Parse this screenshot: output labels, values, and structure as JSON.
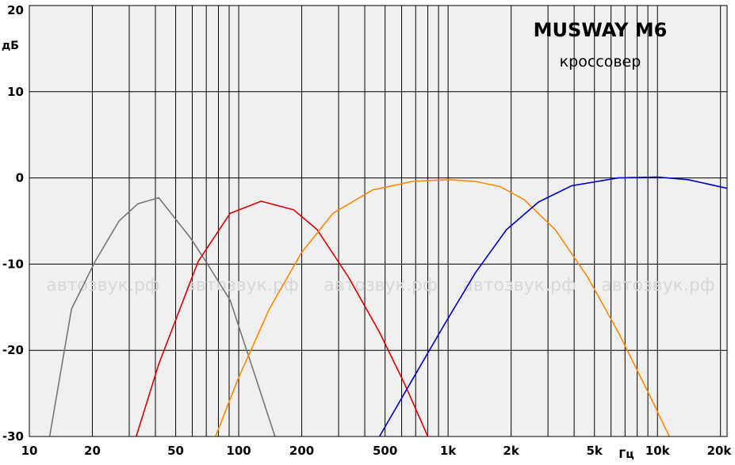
{
  "chart_data": {
    "type": "line",
    "title": "MUSWAY M6",
    "subtitle": "кроссовер",
    "y_label": "дБ",
    "x_label": "Гц",
    "watermark": "автозвук.рф",
    "log_x": true,
    "grid": true,
    "xlim": [
      10,
      21500
    ],
    "ylim": [
      -30,
      20
    ],
    "yticks": [
      -30,
      -20,
      -10,
      0,
      10,
      20
    ],
    "xticks": [
      10,
      20,
      50,
      100,
      200,
      500,
      {
        "value": 1000,
        "label": "1k"
      },
      {
        "value": 2000,
        "label": "2k"
      },
      {
        "value": 5000,
        "label": "5k"
      },
      {
        "value": 10000,
        "label": "10k"
      },
      {
        "value": 20000,
        "label": "20k"
      }
    ],
    "xgrid": [
      30,
      40,
      60,
      70,
      80,
      90,
      300,
      400,
      600,
      700,
      800,
      900,
      3000,
      4000,
      6000,
      7000,
      8000,
      9000
    ],
    "series": [
      {
        "color": "#777777",
        "x": [
          12.5,
          15.9,
          20.6,
          26.8,
          33,
          41.5,
          58.6,
          71,
          91,
          118,
          149
        ],
        "values": [
          -30,
          -15.2,
          -9.7,
          -5,
          -3,
          -2.3,
          -6.9,
          -10,
          -14.2,
          -22.5,
          -30
        ]
      },
      {
        "color": "#e00000",
        "x": [
          32.4,
          41.5,
          64,
          91,
          128,
          183,
          237,
          334,
          470,
          620,
          800
        ],
        "values": [
          -30,
          -21.6,
          -9.7,
          -4.1,
          -2.7,
          -3.7,
          -6,
          -11.5,
          -17.9,
          -23.9,
          -30
        ]
      },
      {
        "color": "#ff8800",
        "x": [
          77.5,
          99,
          140,
          199,
          282,
          436,
          675,
          1000,
          1350,
          1770,
          2300,
          3250,
          4640,
          6500,
          9200,
          11400
        ],
        "values": [
          -30,
          -23.4,
          -15.2,
          -8.7,
          -4.1,
          -1.4,
          -0.4,
          -0.2,
          -0.4,
          -1,
          -2.5,
          -6,
          -11.5,
          -17.9,
          -25.3,
          -30
        ]
      },
      {
        "color": "#0000cc",
        "x": [
          470,
          675,
          960,
          1350,
          1900,
          2700,
          3900,
          6500,
          10000,
          14000,
          21500
        ],
        "values": [
          -30,
          -23.4,
          -17,
          -11,
          -6,
          -2.8,
          -0.9,
          0,
          0.1,
          -0.2,
          -1.2
        ]
      }
    ]
  }
}
